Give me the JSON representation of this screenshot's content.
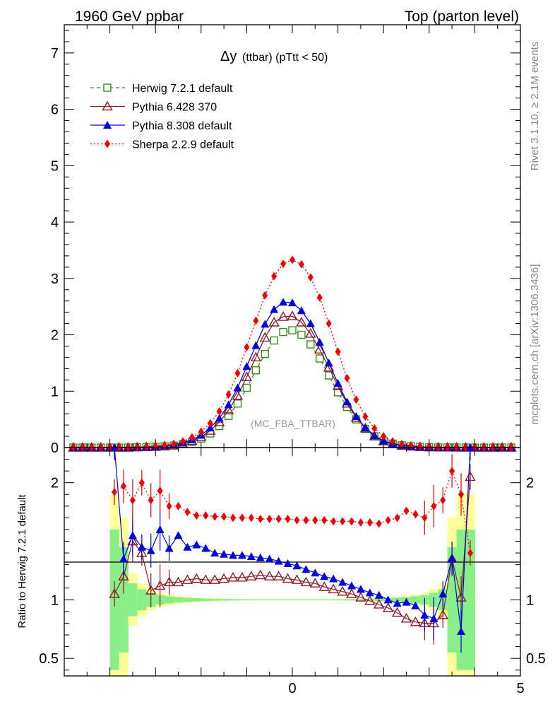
{
  "header": {
    "left": "1960 GeV ppbar",
    "right": "Top (parton level)"
  },
  "title": {
    "main": "Δy",
    "sub": "(ttbar) (pTtt < 50)"
  },
  "side_labels": {
    "rivet": "Rivet 3.1.10, ≥ 2.1M events",
    "mcplots": "mcplots.cern.ch [arXiv:1306.3436]"
  },
  "watermark": "(MC_FBA_TTBAR)",
  "ratio_ylabel": "Ratio to Herwig 7.2.1 default",
  "colors": {
    "herwig": "#3a8a1c",
    "pythia6": "#8b1a2a",
    "pythia8": "#0000dd",
    "sherpa": "#ee0000",
    "band_outer": "#ffff99",
    "band_inner": "#88ee88"
  },
  "chart_data": [
    {
      "type": "line",
      "panel": "main",
      "xlim": [
        -5,
        5
      ],
      "ylim": [
        0,
        7.5
      ],
      "x_ticks": [
        0,
        5
      ],
      "y_ticks": [
        0,
        1,
        2,
        3,
        4,
        5,
        6,
        7
      ],
      "x": [
        -4.8,
        -4.6,
        -4.4,
        -4.2,
        -4.0,
        -3.8,
        -3.6,
        -3.4,
        -3.2,
        -3.0,
        -2.8,
        -2.6,
        -2.4,
        -2.2,
        -2.0,
        -1.8,
        -1.6,
        -1.4,
        -1.2,
        -1.0,
        -0.8,
        -0.6,
        -0.4,
        -0.2,
        0.0,
        0.2,
        0.4,
        0.6,
        0.8,
        1.0,
        1.2,
        1.4,
        1.6,
        1.8,
        2.0,
        2.2,
        2.4,
        2.6,
        2.8,
        3.0,
        3.2,
        3.4,
        3.6,
        3.8,
        4.0,
        4.2,
        4.4,
        4.6,
        4.8
      ],
      "legend_position": "top-left",
      "series": [
        {
          "name": "Herwig 7.2.1 default",
          "marker": "open-square",
          "line": "dashed",
          "values": [
            0,
            0,
            0,
            0,
            0,
            0,
            0,
            0.005,
            0.007,
            0.012,
            0.02,
            0.035,
            0.06,
            0.1,
            0.16,
            0.25,
            0.38,
            0.56,
            0.78,
            1.06,
            1.37,
            1.66,
            1.9,
            2.05,
            2.08,
            2.0,
            1.83,
            1.58,
            1.28,
            0.98,
            0.72,
            0.5,
            0.33,
            0.2,
            0.12,
            0.07,
            0.04,
            0.022,
            0.012,
            0.006,
            0.003,
            0.002,
            0.001,
            0.001,
            0,
            0,
            0,
            0,
            0
          ]
        },
        {
          "name": "Pythia 6.428 370",
          "marker": "open-triangle",
          "line": "solid",
          "values": [
            0,
            0,
            0,
            0,
            0,
            0,
            0,
            0.005,
            0.008,
            0.014,
            0.024,
            0.04,
            0.07,
            0.12,
            0.19,
            0.3,
            0.45,
            0.66,
            0.92,
            1.25,
            1.6,
            1.95,
            2.22,
            2.32,
            2.33,
            2.22,
            2.02,
            1.74,
            1.42,
            1.09,
            0.78,
            0.53,
            0.34,
            0.2,
            0.11,
            0.06,
            0.033,
            0.018,
            0.01,
            0.005,
            0.003,
            0.002,
            0.001,
            0,
            0,
            0,
            0,
            0,
            0
          ]
        },
        {
          "name": "Pythia 8.308 default",
          "marker": "filled-triangle",
          "line": "solid",
          "values": [
            0,
            0,
            0,
            0,
            0,
            0,
            0,
            0.007,
            0.011,
            0.019,
            0.031,
            0.05,
            0.085,
            0.14,
            0.22,
            0.35,
            0.52,
            0.76,
            1.06,
            1.44,
            1.81,
            2.19,
            2.45,
            2.58,
            2.57,
            2.43,
            2.2,
            1.87,
            1.5,
            1.14,
            0.81,
            0.55,
            0.35,
            0.21,
            0.12,
            0.07,
            0.04,
            0.022,
            0.011,
            0.006,
            0.003,
            0.002,
            0.001,
            0,
            0,
            0,
            0,
            0,
            0
          ]
        },
        {
          "name": "Sherpa 2.2.9 default",
          "marker": "filled-diamond",
          "line": "dotted",
          "values": [
            0,
            0,
            0,
            0,
            0,
            0,
            0,
            0.01,
            0.014,
            0.024,
            0.04,
            0.065,
            0.11,
            0.18,
            0.28,
            0.43,
            0.64,
            0.94,
            1.32,
            1.78,
            2.25,
            2.7,
            3.04,
            3.26,
            3.33,
            3.25,
            3.02,
            2.66,
            2.2,
            1.7,
            1.23,
            0.85,
            0.55,
            0.34,
            0.2,
            0.11,
            0.06,
            0.034,
            0.019,
            0.01,
            0.005,
            0.003,
            0.002,
            0.001,
            0,
            0,
            0,
            0,
            0
          ]
        }
      ]
    },
    {
      "type": "line",
      "panel": "ratio",
      "xlim": [
        -5,
        5
      ],
      "ylim": [
        0.35,
        2.3
      ],
      "x_ticks": [
        0,
        5
      ],
      "y_ticks": [
        0.5,
        1,
        2
      ],
      "ylabel": "Ratio to Herwig 7.2.1 default",
      "x": [
        -3.9,
        -3.7,
        -3.5,
        -3.3,
        -3.1,
        -2.9,
        -2.7,
        -2.5,
        -2.3,
        -2.1,
        -1.9,
        -1.7,
        -1.5,
        -1.3,
        -1.1,
        -0.9,
        -0.7,
        -0.5,
        -0.3,
        -0.1,
        0.1,
        0.3,
        0.5,
        0.7,
        0.9,
        1.1,
        1.3,
        1.5,
        1.7,
        1.9,
        2.1,
        2.3,
        2.5,
        2.7,
        2.9,
        3.1,
        3.3,
        3.5,
        3.7,
        3.9
      ],
      "band": {
        "outer_half_width": [
          0.9,
          0.7,
          0.22,
          0.14,
          0.09,
          0.06,
          0.045,
          0.035,
          0.028,
          0.022,
          0.017,
          0.013,
          0.01,
          0.008,
          0.007,
          0.006,
          0.005,
          0.005,
          0.005,
          0.005,
          0.005,
          0.005,
          0.005,
          0.005,
          0.006,
          0.007,
          0.008,
          0.01,
          0.013,
          0.017,
          0.022,
          0.028,
          0.035,
          0.045,
          0.06,
          0.09,
          0.14,
          0.7,
          0.9,
          0.9
        ],
        "inner_half_width": [
          0.6,
          0.45,
          0.14,
          0.09,
          0.06,
          0.04,
          0.03,
          0.023,
          0.018,
          0.014,
          0.011,
          0.009,
          0.007,
          0.006,
          0.005,
          0.004,
          0.004,
          0.004,
          0.004,
          0.004,
          0.004,
          0.004,
          0.004,
          0.004,
          0.004,
          0.005,
          0.006,
          0.007,
          0.009,
          0.011,
          0.014,
          0.018,
          0.023,
          0.03,
          0.04,
          0.06,
          0.09,
          0.45,
          0.6,
          0.6
        ]
      },
      "series": [
        {
          "name": "Pythia 6.428 370",
          "values": [
            1.05,
            1.2,
            1.5,
            1.4,
            1.08,
            1.12,
            1.15,
            1.15,
            1.17,
            1.18,
            1.17,
            1.17,
            1.18,
            1.19,
            1.19,
            1.2,
            1.21,
            1.2,
            1.2,
            1.18,
            1.17,
            1.15,
            1.14,
            1.11,
            1.09,
            1.07,
            1.05,
            1.02,
            0.99,
            0.96,
            0.93,
            0.89,
            0.84,
            0.81,
            0.8,
            0.8,
            0.87,
            1.35,
            1.02,
            2.05
          ]
        },
        {
          "name": "Pythia 8.308 default",
          "values": [
            2.3,
            1.35,
            1.55,
            1.45,
            1.42,
            1.6,
            1.44,
            1.55,
            1.45,
            1.47,
            1.44,
            1.4,
            1.39,
            1.38,
            1.38,
            1.37,
            1.36,
            1.35,
            1.33,
            1.31,
            1.29,
            1.26,
            1.23,
            1.2,
            1.18,
            1.15,
            1.12,
            1.09,
            1.06,
            1.04,
            1.0,
            0.97,
            0.98,
            0.95,
            0.87,
            0.84,
            1.05,
            1.35,
            0.73,
            2.3
          ]
        },
        {
          "name": "Sherpa 2.2.9 default",
          "values": [
            1.92,
            1.97,
            1.85,
            2.0,
            1.85,
            1.93,
            1.8,
            1.8,
            1.75,
            1.72,
            1.72,
            1.71,
            1.71,
            1.7,
            1.7,
            1.7,
            1.69,
            1.69,
            1.69,
            1.69,
            1.68,
            1.68,
            1.68,
            1.68,
            1.67,
            1.67,
            1.67,
            1.66,
            1.66,
            1.65,
            1.68,
            1.7,
            1.76,
            1.73,
            1.7,
            1.8,
            1.85,
            2.1,
            1.9,
            1.4
          ]
        }
      ]
    }
  ]
}
